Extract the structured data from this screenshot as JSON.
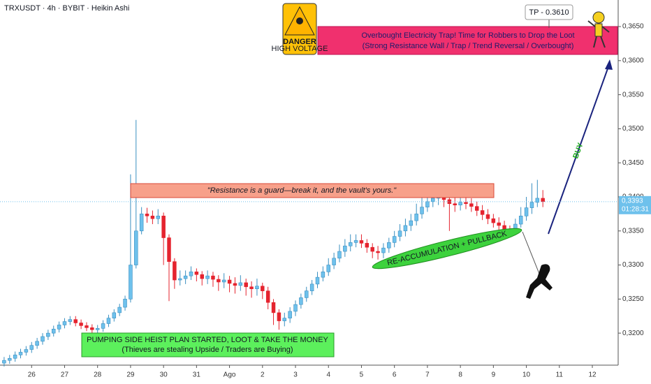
{
  "chart_data": {
    "type": "candlestick",
    "title": "TRXUSDT · 4h · BYBIT · Heikin Ashi",
    "up_color": "#6ec1ec",
    "down_color": "#e5232e",
    "open": [
      0.3156,
      0.316,
      0.3163,
      0.3168,
      0.3172,
      0.3176,
      0.3182,
      0.3188,
      0.3195,
      0.32,
      0.3206,
      0.3212,
      0.3217,
      0.322,
      0.3215,
      0.3211,
      0.3208,
      0.3205,
      0.3207,
      0.3214,
      0.3222,
      0.323,
      0.3238,
      0.325,
      0.33,
      0.335,
      0.3375,
      0.3372,
      0.3368,
      0.3372,
      0.334,
      0.3305,
      0.3278,
      0.328,
      0.3284,
      0.329,
      0.3286,
      0.328,
      0.3284,
      0.3279,
      0.3275,
      0.3278,
      0.3273,
      0.327,
      0.3274,
      0.3268,
      0.3265,
      0.3269,
      0.3262,
      0.3245,
      0.323,
      0.3218,
      0.3222,
      0.3232,
      0.3242,
      0.3252,
      0.3262,
      0.3272,
      0.3282,
      0.329,
      0.33,
      0.331,
      0.332,
      0.3328,
      0.3333,
      0.3336,
      0.3332,
      0.3326,
      0.332,
      0.3318,
      0.3325,
      0.3333,
      0.3342,
      0.335,
      0.3358,
      0.3365,
      0.3375,
      0.3385,
      0.3393,
      0.3398,
      0.34,
      0.3396,
      0.339,
      0.3388,
      0.3392,
      0.339,
      0.3386,
      0.338,
      0.3374,
      0.3368,
      0.3362,
      0.3358,
      0.3352,
      0.335,
      0.336,
      0.3372,
      0.3384,
      0.3392,
      0.3398
    ],
    "high": [
      0.3165,
      0.3168,
      0.3173,
      0.3177,
      0.3181,
      0.3187,
      0.3193,
      0.32,
      0.3205,
      0.3211,
      0.3217,
      0.3222,
      0.3225,
      0.3225,
      0.322,
      0.3216,
      0.3213,
      0.3212,
      0.3219,
      0.3227,
      0.3235,
      0.3243,
      0.3255,
      0.3433,
      0.3513,
      0.3385,
      0.3384,
      0.338,
      0.3382,
      0.3377,
      0.3345,
      0.331,
      0.3292,
      0.3292,
      0.3298,
      0.3295,
      0.3291,
      0.3292,
      0.329,
      0.3285,
      0.3288,
      0.3284,
      0.3282,
      0.3285,
      0.328,
      0.3276,
      0.328,
      0.3274,
      0.3268,
      0.325,
      0.3235,
      0.323,
      0.3238,
      0.3248,
      0.3258,
      0.3268,
      0.3278,
      0.329,
      0.3298,
      0.331,
      0.3318,
      0.333,
      0.3338,
      0.3345,
      0.3345,
      0.3345,
      0.3338,
      0.3332,
      0.3328,
      0.3332,
      0.334,
      0.335,
      0.336,
      0.3368,
      0.3375,
      0.339,
      0.3405,
      0.3412,
      0.3415,
      0.342,
      0.341,
      0.3404,
      0.3402,
      0.3405,
      0.3402,
      0.3398,
      0.3393,
      0.3388,
      0.3382,
      0.3375,
      0.337,
      0.3365,
      0.3358,
      0.3368,
      0.3385,
      0.34,
      0.342,
      0.3425,
      0.341
    ],
    "low": [
      0.3151,
      0.3155,
      0.3158,
      0.3163,
      0.3167,
      0.3171,
      0.3177,
      0.3183,
      0.319,
      0.3195,
      0.3201,
      0.3207,
      0.3212,
      0.321,
      0.3206,
      0.3203,
      0.32,
      0.32,
      0.3202,
      0.3209,
      0.3217,
      0.3225,
      0.3233,
      0.3245,
      0.3295,
      0.3345,
      0.3362,
      0.336,
      0.336,
      0.33,
      0.3247,
      0.3265,
      0.327,
      0.3272,
      0.3278,
      0.3276,
      0.327,
      0.3272,
      0.3268,
      0.3262,
      0.3266,
      0.326,
      0.3258,
      0.3262,
      0.3255,
      0.3252,
      0.3255,
      0.325,
      0.3235,
      0.3212,
      0.3205,
      0.321,
      0.3215,
      0.3225,
      0.3236,
      0.3246,
      0.3256,
      0.3266,
      0.3276,
      0.3284,
      0.3294,
      0.3304,
      0.3312,
      0.332,
      0.3326,
      0.3325,
      0.3318,
      0.331,
      0.3308,
      0.331,
      0.3318,
      0.3326,
      0.3335,
      0.3342,
      0.335,
      0.3358,
      0.3368,
      0.3378,
      0.3385,
      0.3388,
      0.3385,
      0.335,
      0.3378,
      0.338,
      0.3382,
      0.3378,
      0.3372,
      0.3366,
      0.336,
      0.3355,
      0.335,
      0.3345,
      0.3342,
      0.3345,
      0.3355,
      0.3365,
      0.3375,
      0.3385,
      0.3385
    ],
    "close": [
      0.316,
      0.3163,
      0.3168,
      0.3172,
      0.3176,
      0.3182,
      0.3188,
      0.3195,
      0.32,
      0.3206,
      0.3212,
      0.3217,
      0.322,
      0.3215,
      0.3211,
      0.3208,
      0.3205,
      0.3207,
      0.3214,
      0.3222,
      0.323,
      0.3238,
      0.325,
      0.33,
      0.335,
      0.3375,
      0.3372,
      0.3368,
      0.3372,
      0.334,
      0.3305,
      0.3278,
      0.328,
      0.3284,
      0.329,
      0.3286,
      0.328,
      0.3284,
      0.3279,
      0.3275,
      0.3278,
      0.3273,
      0.327,
      0.3274,
      0.3268,
      0.3265,
      0.3269,
      0.3262,
      0.3245,
      0.323,
      0.3218,
      0.3222,
      0.3232,
      0.3242,
      0.3252,
      0.3262,
      0.3272,
      0.3282,
      0.329,
      0.33,
      0.331,
      0.332,
      0.3328,
      0.3333,
      0.3336,
      0.3332,
      0.3326,
      0.332,
      0.3318,
      0.3325,
      0.3333,
      0.3342,
      0.335,
      0.3358,
      0.3365,
      0.3375,
      0.3385,
      0.3393,
      0.3398,
      0.34,
      0.3396,
      0.339,
      0.3388,
      0.3392,
      0.339,
      0.3386,
      0.338,
      0.3374,
      0.3368,
      0.3362,
      0.3358,
      0.3352,
      0.335,
      0.336,
      0.3372,
      0.3384,
      0.3392,
      0.3398,
      0.3393
    ],
    "xlim": [
      -0.75,
      111.7
    ],
    "xticks": [
      {
        "value": 5,
        "label": "26"
      },
      {
        "value": 11,
        "label": "27"
      },
      {
        "value": 17,
        "label": "28"
      },
      {
        "value": 23,
        "label": "29"
      },
      {
        "value": 29,
        "label": "30"
      },
      {
        "value": 35,
        "label": "31"
      },
      {
        "value": 41,
        "label": "Ago"
      },
      {
        "value": 47,
        "label": "2"
      },
      {
        "value": 53,
        "label": "3"
      },
      {
        "value": 59,
        "label": "4"
      },
      {
        "value": 65,
        "label": "5"
      },
      {
        "value": 71,
        "label": "6"
      },
      {
        "value": 77,
        "label": "7"
      },
      {
        "value": 83,
        "label": "8"
      },
      {
        "value": 89,
        "label": "9"
      },
      {
        "value": 95,
        "label": "10"
      },
      {
        "value": 101,
        "label": "11"
      },
      {
        "value": 107,
        "label": "12"
      }
    ],
    "ylim": [
      0.3153,
      0.3689
    ],
    "yticks": [
      {
        "value": 0.32,
        "label": "0,3200"
      },
      {
        "value": 0.325,
        "label": "0,3250"
      },
      {
        "value": 0.33,
        "label": "0,3300"
      },
      {
        "value": 0.335,
        "label": "0,3350"
      },
      {
        "value": 0.34,
        "label": "0,3400"
      },
      {
        "value": 0.345,
        "label": "0,3450"
      },
      {
        "value": 0.35,
        "label": "0,3500"
      },
      {
        "value": 0.355,
        "label": "0,3550"
      },
      {
        "value": 0.36,
        "label": "0,3600"
      },
      {
        "value": 0.365,
        "label": "0,3650"
      }
    ],
    "last_price": {
      "value": 0.3393,
      "label": "0,3393"
    },
    "countdown": "01:28:31",
    "annotations": {
      "resistance": "\"Resistance is a guard—break it, and the vault's yours.\"",
      "heist_line1": "PUMPING SIDE HEIST PLAN STARTED, LOOT & TAKE THE MONEY",
      "heist_line2": "(Thieves are stealing Upside / Traders are Buying)",
      "trap_line1": "Overbought Electricity Trap! Time for Robbers to Drop the Loot",
      "trap_line2": "(Strong Resistance Wall / Trap / Trend Reversal / Overbought)",
      "tp": "TP - 0.3610",
      "reaccumulation": "RE-ACCUMULATION + PULLBACK",
      "buy": "BUY",
      "danger": "DANGER",
      "high_voltage": "HIGH VOLTAGE"
    }
  }
}
